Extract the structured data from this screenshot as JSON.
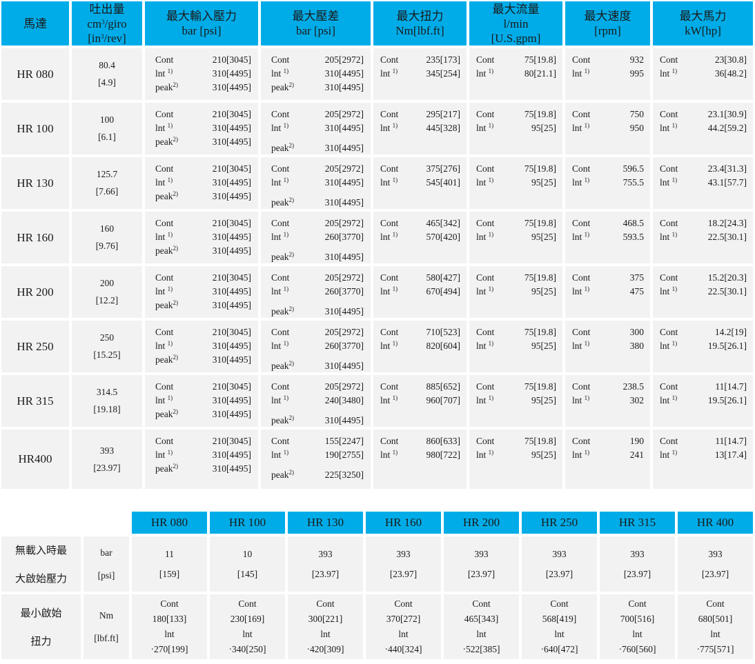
{
  "colors": {
    "header_bg": "#00ACE8",
    "cell_bg": "#F2F2F2",
    "page_bg": "#FFFFFF",
    "text": "#1A1A1A"
  },
  "table1": {
    "headers": [
      [
        "馬達"
      ],
      [
        "吐出量",
        "cm^{3}/giro",
        "[in^{3}/rev]"
      ],
      [
        "最大輸入壓力",
        "bar [psi]"
      ],
      [
        "最大壓差",
        "bar [psi]"
      ],
      [
        "最大扭力",
        "Nm[lbf.ft]"
      ],
      [
        "最大流量",
        "l/min",
        "[U.S.gpm]"
      ],
      [
        "最大速度",
        "[rpm]"
      ],
      [
        "最大馬力",
        "kW[hp]"
      ]
    ],
    "rows": [
      {
        "model": "HR 080",
        "displacement": [
          "80.4",
          "[4.9]"
        ],
        "input_pressure": [
          [
            "Cont",
            "210[3045]"
          ],
          [
            "lnt ^{1)}",
            "310[4495]"
          ],
          [
            "peak^{2)}",
            "310[4495]"
          ]
        ],
        "pressure_diff": [
          [
            "Cont",
            "205[2972]"
          ],
          [
            "lnt ^{1)}",
            "310[4495]"
          ],
          [
            "peak^{2)}",
            "310[4495]"
          ]
        ],
        "diff_gap": false,
        "torque": [
          [
            "Cont",
            "235[173]"
          ],
          [
            "lnt ^{1)}",
            "345[254]"
          ]
        ],
        "flow": [
          [
            "Cont",
            "75[19.8]"
          ],
          [
            "lnt ^{1)}",
            "80[21.1]"
          ]
        ],
        "speed": [
          [
            "Cont",
            "932"
          ],
          [
            "lnt ^{1)}",
            "995"
          ]
        ],
        "power": [
          [
            "Cont",
            "23[30.8]"
          ],
          [
            "lnt ^{1)}",
            "36[48.2]"
          ]
        ]
      },
      {
        "model": "HR 100",
        "displacement": [
          "100",
          "[6.1]"
        ],
        "input_pressure": [
          [
            "Cont",
            "210[3045]"
          ],
          [
            "lnt ^{1)}",
            "310[4495]"
          ],
          [
            "peak^{2)}",
            "310[4495]"
          ]
        ],
        "pressure_diff": [
          [
            "Cont",
            "205[2972]"
          ],
          [
            "lnt ^{1)}",
            "310[4495]"
          ],
          [
            "peak^{2)}",
            "310[4495]"
          ]
        ],
        "diff_gap": true,
        "torque": [
          [
            "Cont",
            "295[217]"
          ],
          [
            "lnt ^{1)}",
            "445[328]"
          ]
        ],
        "flow": [
          [
            "Cont",
            "75[19.8]"
          ],
          [
            "lnt ^{1)}",
            "95[25]"
          ]
        ],
        "speed": [
          [
            "Cont",
            "750"
          ],
          [
            "lnt ^{1)}",
            "950"
          ]
        ],
        "power": [
          [
            "Cont",
            "23.1[30.9]"
          ],
          [
            "lnt ^{1)}",
            "44.2[59.2]"
          ]
        ]
      },
      {
        "model": "HR 130",
        "displacement": [
          "125.7",
          "[7.66]"
        ],
        "input_pressure": [
          [
            "Cont",
            "210[3045]"
          ],
          [
            "lnt ^{1)}",
            "310[4495]"
          ],
          [
            "peak^{2)}",
            "310[4495]"
          ]
        ],
        "pressure_diff": [
          [
            "Cont",
            "205[2972]"
          ],
          [
            "lnt ^{1)}",
            "310[4495]"
          ],
          [
            "peak^{2)}",
            "310[4495]"
          ]
        ],
        "diff_gap": true,
        "torque": [
          [
            "Cont",
            "375[276]"
          ],
          [
            "lnt ^{1)}",
            "545[401]"
          ]
        ],
        "flow": [
          [
            "Cont",
            "75[19.8]"
          ],
          [
            "lnt ^{1)}",
            "95[25]"
          ]
        ],
        "speed": [
          [
            "Cont",
            "596.5"
          ],
          [
            "lnt ^{1)}",
            "755.5"
          ]
        ],
        "power": [
          [
            "Cont",
            "23.4[31.3]"
          ],
          [
            "lnt ^{1)}",
            "43.1[57.7]"
          ]
        ]
      },
      {
        "model": "HR 160",
        "displacement": [
          "160",
          "[9.76]"
        ],
        "input_pressure": [
          [
            "Cont",
            "210[3045]"
          ],
          [
            "lnt ^{1)}",
            "310[4495]"
          ],
          [
            "peak^{2)}",
            "310[4495]"
          ]
        ],
        "pressure_diff": [
          [
            "Cont",
            "205[2972]"
          ],
          [
            "lnt ^{1)}",
            "260[3770]"
          ],
          [
            "peak^{2)}",
            "310[4495]"
          ]
        ],
        "diff_gap": true,
        "torque": [
          [
            "Cont",
            "465[342]"
          ],
          [
            "lnt ^{1)}",
            "570[420]"
          ]
        ],
        "flow": [
          [
            "Cont",
            "75[19.8]"
          ],
          [
            "lnt ^{1)}",
            "95[25]"
          ]
        ],
        "speed": [
          [
            "Cont",
            "468.5"
          ],
          [
            "lnt ^{1)}",
            "593.5"
          ]
        ],
        "power": [
          [
            "Cont",
            "18.2[24.3]"
          ],
          [
            "lnt ^{1)}",
            "22.5[30.1]"
          ]
        ]
      },
      {
        "model": "HR 200",
        "displacement": [
          "200",
          "[12.2]"
        ],
        "input_pressure": [
          [
            "Cont",
            "210[3045]"
          ],
          [
            "lnt ^{1)}",
            "310[4495]"
          ],
          [
            "peak^{2)}",
            "310[4495]"
          ]
        ],
        "pressure_diff": [
          [
            "Cont",
            "205[2972]"
          ],
          [
            "lnt ^{1)}",
            "260[3770]"
          ],
          [
            "peak^{2)}",
            "310[4495]"
          ]
        ],
        "diff_gap": true,
        "torque": [
          [
            "Cont",
            "580[427]"
          ],
          [
            "lnt ^{1)}",
            "670[494]"
          ]
        ],
        "flow": [
          [
            "Cont",
            "75[19.8]"
          ],
          [
            "lnt ^{1)}",
            "95[25]"
          ]
        ],
        "speed": [
          [
            "Cont",
            "375"
          ],
          [
            "lnt ^{1)}",
            "475"
          ]
        ],
        "power": [
          [
            "Cont",
            "15.2[20.3]"
          ],
          [
            "lnt ^{1)}",
            "22.5[30.1]"
          ]
        ]
      },
      {
        "model": "HR 250",
        "displacement": [
          "250",
          "[15.25]"
        ],
        "input_pressure": [
          [
            "Cont",
            "210[3045]"
          ],
          [
            "lnt ^{1)}",
            "310[4495]"
          ],
          [
            "peak^{2)}",
            "310[4495]"
          ]
        ],
        "pressure_diff": [
          [
            "Cont",
            "205[2972]"
          ],
          [
            "lnt ^{1)}",
            "260[3770]"
          ],
          [
            "peak^{2)}",
            "310[4495]"
          ]
        ],
        "diff_gap": true,
        "torque": [
          [
            "Cont",
            "710[523]"
          ],
          [
            "lnt ^{1)}",
            "820[604]"
          ]
        ],
        "flow": [
          [
            "Cont",
            "75[19.8]"
          ],
          [
            "lnt ^{1)}",
            "95[25]"
          ]
        ],
        "speed": [
          [
            "Cont",
            "300"
          ],
          [
            "lnt ^{1)}",
            "380"
          ]
        ],
        "power": [
          [
            "Cont",
            "14.2[19]"
          ],
          [
            "lnt ^{1)}",
            "19.5[26.1]"
          ]
        ]
      },
      {
        "model": "HR 315",
        "displacement": [
          "314.5",
          "[19.18]"
        ],
        "input_pressure": [
          [
            "Cont",
            "210[3045]"
          ],
          [
            "lnt ^{1)}",
            "310[4495]"
          ],
          [
            "peak^{2)}",
            "310[4495]"
          ]
        ],
        "pressure_diff": [
          [
            "Cont",
            "205[2972]"
          ],
          [
            "lnt ^{1)}",
            "240[3480]"
          ],
          [
            "peak^{2)}",
            "310[4495]"
          ]
        ],
        "diff_gap": true,
        "torque": [
          [
            "Cont",
            "885[652]"
          ],
          [
            "lnt ^{1)}",
            "960[707]"
          ]
        ],
        "flow": [
          [
            "Cont",
            "75[19.8]"
          ],
          [
            "lnt ^{1)}",
            "95[25]"
          ]
        ],
        "speed": [
          [
            "Cont",
            "238.5"
          ],
          [
            "lnt ^{1)}",
            "302"
          ]
        ],
        "power": [
          [
            "Cont",
            "11[14.7]"
          ],
          [
            "lnt ^{1)}",
            "19.5[26.1]"
          ]
        ]
      },
      {
        "model": "HR400",
        "displacement": [
          "393",
          "[23.97]"
        ],
        "input_pressure": [
          [
            "Cont",
            "210[3045]"
          ],
          [
            "lnt ^{1)}",
            "310[4495]"
          ],
          [
            "peak^{2)}",
            "310[4495]"
          ]
        ],
        "pressure_diff": [
          [
            "Cont",
            "155[2247]"
          ],
          [
            "lnt ^{1)}",
            "190[2755]"
          ],
          [
            "peak^{2)}",
            "225[3250]"
          ]
        ],
        "diff_gap": true,
        "torque": [
          [
            "Cont",
            "860[633]"
          ],
          [
            "lnt ^{1)}",
            "980[722]"
          ]
        ],
        "flow": [
          [
            "Cont",
            "75[19.8]"
          ],
          [
            "lnt ^{1)}",
            "95[25]"
          ]
        ],
        "speed": [
          [
            "Cont",
            "190"
          ],
          [
            "lnt ^{1)}",
            "241"
          ]
        ],
        "power": [
          [
            "Cont",
            "11[14.7]"
          ],
          [
            "lnt ^{1)}",
            "13[17.4]"
          ]
        ]
      }
    ]
  },
  "table2": {
    "headers": [
      "HR 080",
      "HR 100",
      "HR 130",
      "HR 160",
      "HR 200",
      "HR 250",
      "HR 315",
      "HR 400"
    ],
    "rows": [
      {
        "label": [
          "無載入時最",
          "大啟始壓力"
        ],
        "unit": [
          "bar",
          "[psi]"
        ],
        "values": [
          [
            "11",
            "[159]"
          ],
          [
            "10",
            "[145]"
          ],
          [
            "393",
            "[23.97]"
          ],
          [
            "393",
            "[23.97]"
          ],
          [
            "393",
            "[23.97]"
          ],
          [
            "393",
            "[23.97]"
          ],
          [
            "393",
            "[23.97]"
          ],
          [
            "393",
            "[23.97]"
          ]
        ]
      },
      {
        "label": [
          "最小啟始",
          "扭力"
        ],
        "unit": [
          "Nm",
          "[lbf.ft]"
        ],
        "values": [
          [
            "Cont",
            "180[133]",
            "lnt",
            "·270[199]"
          ],
          [
            "Cont",
            "230[169]",
            "lnt",
            "·340[250]"
          ],
          [
            "Cont",
            "300[221]",
            "lnt",
            "·420[309]"
          ],
          [
            "Cont",
            "370[272]",
            "lnt",
            "·440[324]"
          ],
          [
            "Cont",
            "465[343]",
            "lnt",
            "·522[385]"
          ],
          [
            "Cont",
            "568[419]",
            "lnt",
            "·640[472]"
          ],
          [
            "Cont",
            "700[516]",
            "lnt",
            "·760[560]"
          ],
          [
            "Cont",
            "680[501]",
            "lnt",
            "·775[571]"
          ]
        ]
      }
    ]
  }
}
